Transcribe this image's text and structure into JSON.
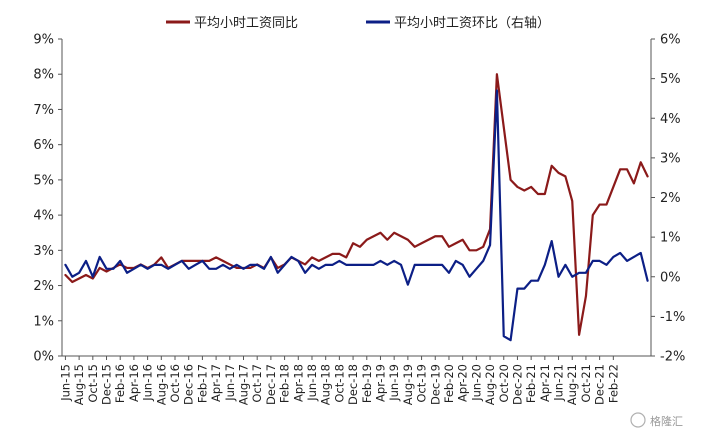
{
  "chart_data": {
    "type": "line",
    "legend": "top-center",
    "grid": false,
    "x_tick_labels": [
      "Jun-15",
      "Aug-15",
      "Oct-15",
      "Dec-15",
      "Feb-16",
      "Apr-16",
      "Jun-16",
      "Aug-16",
      "Oct-16",
      "Dec-16",
      "Feb-17",
      "Apr-17",
      "Jun-17",
      "Aug-17",
      "Oct-17",
      "Dec-17",
      "Feb-18",
      "Apr-18",
      "Jun-18",
      "Aug-18",
      "Oct-18",
      "Dec-18",
      "Feb-19",
      "Apr-19",
      "Jun-19",
      "Aug-19",
      "Oct-19",
      "Dec-19",
      "Feb-20",
      "Apr-20",
      "Jun-20",
      "Aug-20",
      "Oct-20",
      "Dec-20",
      "Feb-21",
      "Apr-21",
      "Jun-21",
      "Aug-21",
      "Oct-21",
      "Dec-21",
      "Feb-22"
    ],
    "x_start": "2015-06",
    "y_left": {
      "min": 0,
      "max": 9,
      "step": 1,
      "tick_labels": [
        "0%",
        "1%",
        "2%",
        "3%",
        "4%",
        "5%",
        "6%",
        "7%",
        "8%",
        "9%"
      ]
    },
    "y_right": {
      "min": -2,
      "max": 6,
      "step": 1,
      "tick_labels": [
        "-2%",
        "-1%",
        "0%",
        "1%",
        "2%",
        "3%",
        "4%",
        "5%",
        "6%"
      ]
    },
    "series": [
      {
        "name": "平均小时工资同比",
        "axis": "left",
        "color": "#8b1a1a",
        "values": [
          2.3,
          2.1,
          2.2,
          2.3,
          2.2,
          2.5,
          2.4,
          2.5,
          2.6,
          2.5,
          2.5,
          2.6,
          2.5,
          2.6,
          2.8,
          2.5,
          2.6,
          2.7,
          2.7,
          2.7,
          2.7,
          2.7,
          2.8,
          2.7,
          2.6,
          2.5,
          2.5,
          2.5,
          2.6,
          2.5,
          2.8,
          2.5,
          2.6,
          2.8,
          2.7,
          2.6,
          2.8,
          2.7,
          2.8,
          2.9,
          2.9,
          2.8,
          3.2,
          3.1,
          3.3,
          3.4,
          3.5,
          3.3,
          3.5,
          3.4,
          3.3,
          3.1,
          3.2,
          3.3,
          3.4,
          3.4,
          3.1,
          3.2,
          3.3,
          3.0,
          3.0,
          3.1,
          3.6,
          8.0,
          6.5,
          5.0,
          4.8,
          4.7,
          4.8,
          4.6,
          4.6,
          5.4,
          5.2,
          5.1,
          4.4,
          0.6,
          1.7,
          4.0,
          4.3,
          4.3,
          4.8,
          5.3,
          5.3,
          4.9,
          5.5,
          5.1
        ]
      },
      {
        "name": "平均小时工资环比（右轴）",
        "axis": "right",
        "color": "#0c1f86",
        "values": [
          0.3,
          0.0,
          0.1,
          0.4,
          0.0,
          0.5,
          0.2,
          0.2,
          0.4,
          0.1,
          0.2,
          0.3,
          0.2,
          0.3,
          0.3,
          0.2,
          0.3,
          0.4,
          0.2,
          0.3,
          0.4,
          0.2,
          0.2,
          0.3,
          0.2,
          0.3,
          0.2,
          0.3,
          0.3,
          0.2,
          0.5,
          0.1,
          0.3,
          0.5,
          0.4,
          0.1,
          0.3,
          0.2,
          0.3,
          0.3,
          0.4,
          0.3,
          0.3,
          0.3,
          0.3,
          0.3,
          0.4,
          0.3,
          0.4,
          0.3,
          -0.2,
          0.3,
          0.3,
          0.3,
          0.3,
          0.3,
          0.1,
          0.4,
          0.3,
          0.0,
          0.2,
          0.4,
          0.8,
          4.7,
          -1.5,
          -1.6,
          -0.3,
          -0.3,
          -0.1,
          -0.1,
          0.3,
          0.9,
          0.0,
          0.3,
          0.0,
          0.1,
          0.1,
          0.4,
          0.4,
          0.3,
          0.5,
          0.6,
          0.4,
          0.5,
          0.6,
          -0.1
        ]
      }
    ]
  },
  "watermark_text": "格隆汇"
}
